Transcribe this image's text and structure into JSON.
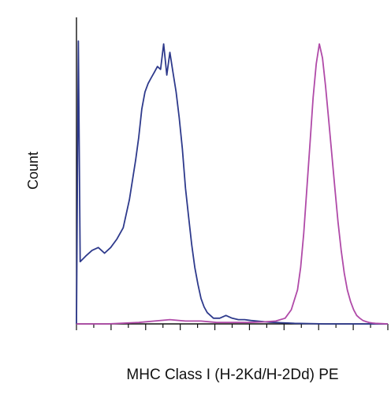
{
  "chart_data": {
    "type": "line",
    "title": "",
    "xlabel": "MHC Class I (H-2Kd/H-2Dd) PE",
    "ylabel": "Count",
    "xlim": [
      0,
      100
    ],
    "ylim": [
      0,
      100
    ],
    "grid": false,
    "legend": "none",
    "x_tick_count": 19,
    "series": [
      {
        "color": "#2e3a8c",
        "x": [
          0,
          0.6,
          1.2,
          3,
          5,
          7,
          9,
          11,
          13,
          15,
          17,
          19,
          20,
          21,
          22,
          23,
          24,
          25,
          26,
          27,
          28,
          29,
          30,
          31,
          32,
          33,
          34,
          35,
          36,
          37,
          38,
          39,
          40,
          41,
          42,
          43,
          44,
          46,
          48,
          50,
          52,
          54,
          56,
          58,
          60,
          62,
          64,
          66,
          68,
          70,
          75,
          80,
          90,
          100
        ],
        "y": [
          0,
          100,
          22,
          24,
          26,
          27,
          25,
          27,
          30,
          34,
          44,
          58,
          66,
          76,
          82,
          85,
          87,
          89,
          91,
          90,
          99,
          88,
          96,
          89,
          82,
          73,
          62,
          48,
          38,
          28,
          20,
          14,
          9,
          6,
          4,
          3,
          2,
          2,
          3,
          2,
          1.5,
          1.5,
          1.2,
          1,
          0.8,
          0.6,
          0.5,
          0.4,
          0.3,
          0.2,
          0.1,
          0,
          0,
          0
        ]
      },
      {
        "color": "#b04aa8",
        "x": [
          0,
          10,
          20,
          25,
          30,
          35,
          40,
          45,
          50,
          55,
          60,
          64,
          67,
          69,
          71,
          72,
          73,
          74,
          75,
          76,
          77,
          78,
          79,
          80,
          81,
          82,
          83,
          84,
          85,
          86,
          87,
          88,
          89,
          90,
          91,
          92,
          93,
          94,
          95,
          96,
          100
        ],
        "y": [
          0,
          0,
          0.5,
          1,
          1.5,
          1,
          1,
          0.5,
          0.5,
          0.5,
          0.7,
          1,
          2,
          5,
          12,
          20,
          32,
          48,
          64,
          80,
          92,
          99,
          94,
          84,
          72,
          60,
          48,
          36,
          26,
          18,
          12,
          8,
          5,
          3,
          2,
          1.2,
          0.8,
          0.5,
          0.3,
          0.2,
          0
        ]
      }
    ]
  }
}
